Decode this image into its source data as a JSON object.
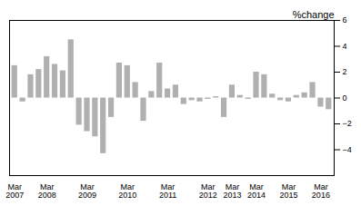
{
  "chart_data": {
    "type": "bar",
    "title": "%change",
    "categories": [
      "Mar\n2007",
      null,
      null,
      null,
      "Mar\n2008",
      null,
      null,
      null,
      null,
      "Mar\n2009",
      null,
      null,
      null,
      null,
      "Mar\n2010",
      null,
      null,
      null,
      null,
      "Mar\n2011",
      null,
      null,
      null,
      null,
      "Mar\n2012",
      null,
      null,
      "Mar\n2013",
      null,
      null,
      "Mar\n2014",
      null,
      null,
      null,
      "Mar\n2015",
      null,
      null,
      null,
      "Mar\n2016",
      null
    ],
    "values": [
      2.5,
      -0.3,
      1.8,
      2.2,
      3.2,
      2.6,
      2.1,
      4.5,
      -2.1,
      -2.6,
      -3.0,
      -4.3,
      -1.5,
      2.7,
      2.5,
      1.2,
      -1.8,
      0.5,
      2.7,
      0.7,
      1.0,
      -0.5,
      -0.2,
      -0.3,
      -0.1,
      0.1,
      -1.5,
      1.0,
      0.2,
      -0.1,
      2.0,
      1.8,
      0.3,
      -0.2,
      -0.3,
      0.2,
      0.4,
      1.2,
      -0.7,
      -0.9
    ],
    "color": "#b0b0b0",
    "ylim": [
      -6,
      6
    ],
    "yticks": [
      -4,
      -2,
      0,
      2,
      4,
      6
    ],
    "grid": false
  }
}
